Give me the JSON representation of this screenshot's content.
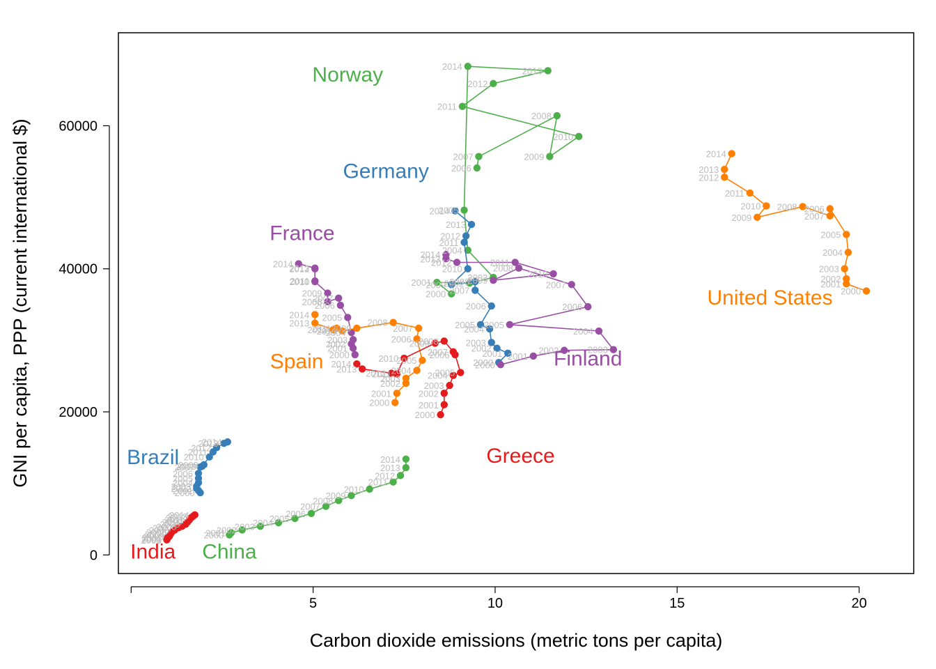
{
  "chart_data": {
    "type": "scatter",
    "connected": true,
    "xlabel": "Carbon dioxide emissions (metric tons per capita)",
    "ylabel": "GNI per capita, PPP (current international $)",
    "xlim": [
      -0.35,
      21.5
    ],
    "ylim": [
      -2600,
      73000
    ],
    "xticks": [
      5,
      10,
      15,
      20
    ],
    "yticks": [
      0,
      20000,
      40000,
      60000
    ],
    "grid": false,
    "legend": "none; series names printed inside the plot",
    "series": [
      {
        "name": "Norway",
        "color": "#4daf4a",
        "label_pos": {
          "x": 5.95,
          "y": 66200
        },
        "points": [
          {
            "year": "2006",
            "x": 9.5,
            "y": 54100
          },
          {
            "year": "2007",
            "x": 9.55,
            "y": 55700
          },
          {
            "year": "2008",
            "x": 11.7,
            "y": 61400
          },
          {
            "year": "2009",
            "x": 11.5,
            "y": 55700
          },
          {
            "year": "2010",
            "x": 12.3,
            "y": 58500
          },
          {
            "year": "2011",
            "x": 9.1,
            "y": 62700
          },
          {
            "year": "2012",
            "x": 9.95,
            "y": 65900
          },
          {
            "year": "2013",
            "x": 11.45,
            "y": 67700
          },
          {
            "year": "2014",
            "x": 9.25,
            "y": 68300
          },
          {
            "year": "2005",
            "x": 9.15,
            "y": 48200
          },
          {
            "year": "2004",
            "x": 9.25,
            "y": 42600
          },
          {
            "year": "2003",
            "x": 9.95,
            "y": 38800
          },
          {
            "year": "2002",
            "x": 9.3,
            "y": 38000
          },
          {
            "year": "2001",
            "x": 8.4,
            "y": 38100
          },
          {
            "year": "2000",
            "x": 8.8,
            "y": 36500
          }
        ]
      },
      {
        "name": "Germany",
        "color": "#377eb8",
        "label_pos": {
          "x": 7.0,
          "y": 52700
        },
        "points": [
          {
            "year": "2000",
            "x": 10.1,
            "y": 26900
          },
          {
            "year": "2001",
            "x": 10.35,
            "y": 28200
          },
          {
            "year": "2002",
            "x": 10.05,
            "y": 28900
          },
          {
            "year": "2003",
            "x": 9.9,
            "y": 29700
          },
          {
            "year": "2004",
            "x": 9.85,
            "y": 31600
          },
          {
            "year": "2005",
            "x": 9.6,
            "y": 32200
          },
          {
            "year": "2006",
            "x": 9.9,
            "y": 34800
          },
          {
            "year": "2007",
            "x": 9.45,
            "y": 37000
          },
          {
            "year": "2008",
            "x": 9.45,
            "y": 38200
          },
          {
            "year": "2009",
            "x": 8.8,
            "y": 37800
          },
          {
            "year": "2010",
            "x": 9.25,
            "y": 40000
          },
          {
            "year": "2011",
            "x": 9.15,
            "y": 43700
          },
          {
            "year": "2012",
            "x": 9.2,
            "y": 44600
          },
          {
            "year": "2013",
            "x": 9.35,
            "y": 46200
          },
          {
            "year": "2014",
            "x": 8.9,
            "y": 48100
          }
        ]
      },
      {
        "name": "France",
        "color": "#984ea3",
        "label_pos": {
          "x": 4.7,
          "y": 44000
        },
        "points": [
          {
            "year": "2000",
            "x": 6.15,
            "y": 28000
          },
          {
            "year": "2001",
            "x": 6.1,
            "y": 28900
          },
          {
            "year": "2002",
            "x": 6.05,
            "y": 29500
          },
          {
            "year": "2003",
            "x": 6.1,
            "y": 30100
          },
          {
            "year": "2004",
            "x": 6.05,
            "y": 31100
          },
          {
            "year": "2005",
            "x": 5.95,
            "y": 33200
          },
          {
            "year": "2006",
            "x": 5.75,
            "y": 34900
          },
          {
            "year": "2007",
            "x": 5.7,
            "y": 35900
          },
          {
            "year": "2008",
            "x": 5.4,
            "y": 35400
          },
          {
            "year": "2009",
            "x": 5.4,
            "y": 36600
          },
          {
            "year": "2010",
            "x": 5.05,
            "y": 38200
          },
          {
            "year": "2011",
            "x": 5.05,
            "y": 38300
          },
          {
            "year": "2012",
            "x": 5.05,
            "y": 40000
          },
          {
            "year": "2013",
            "x": 5.05,
            "y": 40100
          },
          {
            "year": "2014",
            "x": 4.6,
            "y": 40700
          }
        ]
      },
      {
        "name": "Finland",
        "color": "#984ea3",
        "label_pos": {
          "x": 12.55,
          "y": 26500
        },
        "points": [
          {
            "year": "2000",
            "x": 10.15,
            "y": 26600
          },
          {
            "year": "2001",
            "x": 11.05,
            "y": 27800
          },
          {
            "year": "2002",
            "x": 11.9,
            "y": 28600
          },
          {
            "year": "2003",
            "x": 13.25,
            "y": 28700
          },
          {
            "year": "2004",
            "x": 12.85,
            "y": 31300
          },
          {
            "year": "2005",
            "x": 10.4,
            "y": 32200
          },
          {
            "year": "2006",
            "x": 12.55,
            "y": 34700
          },
          {
            "year": "2007",
            "x": 12.1,
            "y": 37800
          },
          {
            "year": "2008",
            "x": 10.65,
            "y": 40100
          },
          {
            "year": "2009",
            "x": 9.95,
            "y": 38400
          },
          {
            "year": "2010",
            "x": 11.6,
            "y": 39300
          },
          {
            "year": "2011",
            "x": 10.55,
            "y": 40900
          },
          {
            "year": "2012",
            "x": 8.95,
            "y": 40900
          },
          {
            "year": "2013",
            "x": 8.65,
            "y": 41400
          },
          {
            "year": "2014",
            "x": 8.65,
            "y": 42000
          }
        ]
      },
      {
        "name": "United States",
        "color": "#ff7f00",
        "label_pos": {
          "x": 17.55,
          "y": 35000
        },
        "points": [
          {
            "year": "2000",
            "x": 20.2,
            "y": 36900
          },
          {
            "year": "2001",
            "x": 19.65,
            "y": 37900
          },
          {
            "year": "2002",
            "x": 19.65,
            "y": 38600
          },
          {
            "year": "2003",
            "x": 19.6,
            "y": 40000
          },
          {
            "year": "2004",
            "x": 19.7,
            "y": 42300
          },
          {
            "year": "2005",
            "x": 19.65,
            "y": 44800
          },
          {
            "year": "2006",
            "x": 19.2,
            "y": 48400
          },
          {
            "year": "2007",
            "x": 19.2,
            "y": 47400
          },
          {
            "year": "2008",
            "x": 18.45,
            "y": 48700
          },
          {
            "year": "2009",
            "x": 17.2,
            "y": 47200
          },
          {
            "year": "2010",
            "x": 17.45,
            "y": 48800
          },
          {
            "year": "2011",
            "x": 17.0,
            "y": 50600
          },
          {
            "year": "2012",
            "x": 16.3,
            "y": 52800
          },
          {
            "year": "2013",
            "x": 16.3,
            "y": 53900
          },
          {
            "year": "2014",
            "x": 16.5,
            "y": 56100
          }
        ]
      },
      {
        "name": "Spain",
        "color": "#ff7f00",
        "label_pos": {
          "x": 4.55,
          "y": 26100
        },
        "points": [
          {
            "year": "2000",
            "x": 7.25,
            "y": 21300
          },
          {
            "year": "2001",
            "x": 7.3,
            "y": 22600
          },
          {
            "year": "2002",
            "x": 7.55,
            "y": 24000
          },
          {
            "year": "2003",
            "x": 7.55,
            "y": 24700
          },
          {
            "year": "2004",
            "x": 7.85,
            "y": 25800
          },
          {
            "year": "2005",
            "x": 8.0,
            "y": 27200
          },
          {
            "year": "2006",
            "x": 7.85,
            "y": 30200
          },
          {
            "year": "2007",
            "x": 7.9,
            "y": 31700
          },
          {
            "year": "2008",
            "x": 7.2,
            "y": 32500
          },
          {
            "year": "2009",
            "x": 6.2,
            "y": 31700
          },
          {
            "year": "2010",
            "x": 5.8,
            "y": 31300
          },
          {
            "year": "2011",
            "x": 5.65,
            "y": 31700
          },
          {
            "year": "2012",
            "x": 5.55,
            "y": 31500
          },
          {
            "year": "2013",
            "x": 5.05,
            "y": 32400
          },
          {
            "year": "2014",
            "x": 5.05,
            "y": 33600
          }
        ]
      },
      {
        "name": "Greece",
        "color": "#e41a1c",
        "label_pos": {
          "x": 10.7,
          "y": 12900
        },
        "points": [
          {
            "year": "2000",
            "x": 8.5,
            "y": 19600
          },
          {
            "year": "2001",
            "x": 8.6,
            "y": 21000
          },
          {
            "year": "2002",
            "x": 8.6,
            "y": 22600
          },
          {
            "year": "2003",
            "x": 8.75,
            "y": 23700
          },
          {
            "year": "2004",
            "x": 8.85,
            "y": 25100
          },
          {
            "year": "2005",
            "x": 9.05,
            "y": 25500
          },
          {
            "year": "2006",
            "x": 8.9,
            "y": 28000
          },
          {
            "year": "2007",
            "x": 8.85,
            "y": 28400
          },
          {
            "year": "2008",
            "x": 8.6,
            "y": 29900
          },
          {
            "year": "2009",
            "x": 8.35,
            "y": 29600
          },
          {
            "year": "2010",
            "x": 7.5,
            "y": 27500
          },
          {
            "year": "2011",
            "x": 7.3,
            "y": 25300
          },
          {
            "year": "2012",
            "x": 7.15,
            "y": 25400
          },
          {
            "year": "2013",
            "x": 6.35,
            "y": 26000
          },
          {
            "year": "2014",
            "x": 6.2,
            "y": 26700
          }
        ]
      },
      {
        "name": "Brazil",
        "color": "#377eb8",
        "label_pos": {
          "x": 0.6,
          "y": 12700
        },
        "points": [
          {
            "year": "2000",
            "x": 1.9,
            "y": 8700
          },
          {
            "year": "2001",
            "x": 1.85,
            "y": 9000
          },
          {
            "year": "2002",
            "x": 1.8,
            "y": 9300
          },
          {
            "year": "2003",
            "x": 1.8,
            "y": 9600
          },
          {
            "year": "2004",
            "x": 1.85,
            "y": 10100
          },
          {
            "year": "2005",
            "x": 1.85,
            "y": 10700
          },
          {
            "year": "2006",
            "x": 1.85,
            "y": 11400
          },
          {
            "year": "2007",
            "x": 1.9,
            "y": 12300
          },
          {
            "year": "2008",
            "x": 2.0,
            "y": 12600
          },
          {
            "year": "2009",
            "x": 1.95,
            "y": 12400
          },
          {
            "year": "2010",
            "x": 2.15,
            "y": 13700
          },
          {
            "year": "2011",
            "x": 2.25,
            "y": 14400
          },
          {
            "year": "2012",
            "x": 2.35,
            "y": 15000
          },
          {
            "year": "2013",
            "x": 2.55,
            "y": 15600
          },
          {
            "year": "2014",
            "x": 2.65,
            "y": 15800
          }
        ]
      },
      {
        "name": "China",
        "color": "#4daf4a",
        "label_pos": {
          "x": 2.7,
          "y": -500
        },
        "points": [
          {
            "year": "2000",
            "x": 2.7,
            "y": 2800
          },
          {
            "year": "2001",
            "x": 2.75,
            "y": 3100
          },
          {
            "year": "2002",
            "x": 3.05,
            "y": 3500
          },
          {
            "year": "2003",
            "x": 3.55,
            "y": 4000
          },
          {
            "year": "2004",
            "x": 4.05,
            "y": 4500
          },
          {
            "year": "2005",
            "x": 4.5,
            "y": 5100
          },
          {
            "year": "2006",
            "x": 4.95,
            "y": 5800
          },
          {
            "year": "2007",
            "x": 5.35,
            "y": 6800
          },
          {
            "year": "2008",
            "x": 5.7,
            "y": 7600
          },
          {
            "year": "2009",
            "x": 6.05,
            "y": 8300
          },
          {
            "year": "2010",
            "x": 6.55,
            "y": 9200
          },
          {
            "year": "2011",
            "x": 7.2,
            "y": 10200
          },
          {
            "year": "2012",
            "x": 7.4,
            "y": 11100
          },
          {
            "year": "2013",
            "x": 7.55,
            "y": 12200
          },
          {
            "year": "2014",
            "x": 7.55,
            "y": 13400
          }
        ]
      },
      {
        "name": "India",
        "color": "#e41a1c",
        "label_pos": {
          "x": 0.6,
          "y": -500
        },
        "points": [
          {
            "year": "2000",
            "x": 0.98,
            "y": 2100
          },
          {
            "year": "2001",
            "x": 0.99,
            "y": 2200
          },
          {
            "year": "2002",
            "x": 1.0,
            "y": 2400
          },
          {
            "year": "2003",
            "x": 1.05,
            "y": 2600
          },
          {
            "year": "2004",
            "x": 1.08,
            "y": 2900
          },
          {
            "year": "2005",
            "x": 1.12,
            "y": 3200
          },
          {
            "year": "2006",
            "x": 1.2,
            "y": 3500
          },
          {
            "year": "2007",
            "x": 1.3,
            "y": 3800
          },
          {
            "year": "2008",
            "x": 1.4,
            "y": 4000
          },
          {
            "year": "2009",
            "x": 1.5,
            "y": 4300
          },
          {
            "year": "2010",
            "x": 1.55,
            "y": 4600
          },
          {
            "year": "2011",
            "x": 1.6,
            "y": 4900
          },
          {
            "year": "2012",
            "x": 1.65,
            "y": 5200
          },
          {
            "year": "2013",
            "x": 1.7,
            "y": 5400
          },
          {
            "year": "2014",
            "x": 1.75,
            "y": 5600
          }
        ]
      }
    ]
  }
}
